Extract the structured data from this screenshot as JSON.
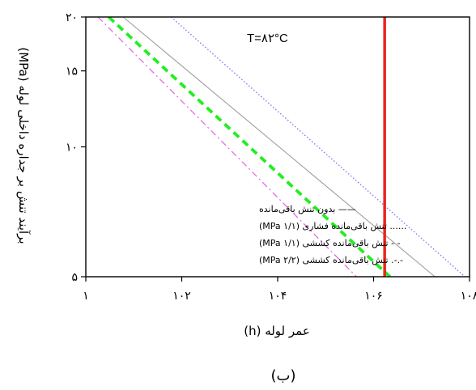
{
  "chart_data": {
    "type": "line",
    "title": "",
    "annotation": "T=۸۲°C",
    "xlabel": "عمر لوله (h)",
    "ylabel": "برآیند تنش بر جداره داخلی لوله (MPa)",
    "caption": "(ب)",
    "x_scale": "log",
    "y_scale": "log",
    "xlim": [
      1,
      100000000
    ],
    "ylim": [
      5,
      20
    ],
    "x_ticks": [
      {
        "value": 1,
        "label": "۱"
      },
      {
        "value": 100,
        "label": "۱۰۲"
      },
      {
        "value": 10000,
        "label": "۱۰۴"
      },
      {
        "value": 1000000,
        "label": "۱۰۶"
      },
      {
        "value": 100000000,
        "label": "۱۰۸"
      }
    ],
    "y_ticks": [
      {
        "value": 5,
        "label": "۵"
      },
      {
        "value": 10,
        "label": "۱۰"
      },
      {
        "value": 15,
        "label": "۱۵"
      },
      {
        "value": 20,
        "label": "۲۰"
      }
    ],
    "vertical_line": {
      "x": 1700000,
      "color": "#e8261f"
    },
    "legend_position": "bottom-left",
    "grid": false,
    "series": [
      {
        "name": "بدون تنش باقی‌مانده",
        "legend_marker": "——",
        "color": "#9e9e9e",
        "style": "solid",
        "x": [
          6,
          19000000
        ],
        "y": [
          20,
          5
        ]
      },
      {
        "name": "تنش باقی‌مانده فشاری (۱/۱ MPa)",
        "legend_marker": "......",
        "color": "#7c7ef0",
        "style": "dotted",
        "x": [
          60,
          80000000
        ],
        "y": [
          20,
          5
        ]
      },
      {
        "name": "تنش باقی‌مانده کششی (۱/۱ MPa)",
        "legend_marker": "- -",
        "color": "#22ee22",
        "style": "dashed",
        "x": [
          3,
          2200000
        ],
        "y": [
          20,
          5
        ]
      },
      {
        "name": "تنش باقی‌مانده کششی (۲/۲ MPa)",
        "legend_marker": "-.-.",
        "color": "#e070e0",
        "style": "dashdot",
        "x": [
          1.8,
          440000
        ],
        "y": [
          20,
          5
        ]
      }
    ]
  }
}
